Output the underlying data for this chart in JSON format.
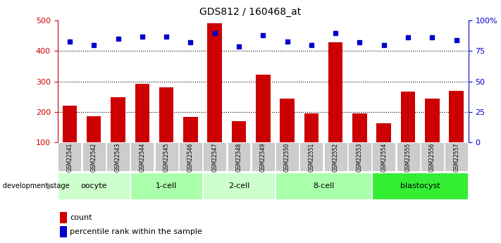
{
  "title": "GDS812 / 160468_at",
  "samples": [
    "GSM22541",
    "GSM22542",
    "GSM22543",
    "GSM22544",
    "GSM22545",
    "GSM22546",
    "GSM22547",
    "GSM22548",
    "GSM22549",
    "GSM22550",
    "GSM22551",
    "GSM22552",
    "GSM22553",
    "GSM22554",
    "GSM22555",
    "GSM22556",
    "GSM22557"
  ],
  "counts": [
    220,
    185,
    248,
    292,
    280,
    183,
    492,
    170,
    322,
    244,
    194,
    430,
    194,
    163,
    267,
    244,
    270
  ],
  "percentiles": [
    83,
    80,
    85,
    87,
    87,
    82,
    90,
    79,
    88,
    83,
    80,
    90,
    82,
    80,
    86,
    86,
    84
  ],
  "groups": [
    {
      "label": "oocyte",
      "start": 0,
      "end": 3,
      "color": "#ccffcc"
    },
    {
      "label": "1-cell",
      "start": 3,
      "end": 6,
      "color": "#aaffaa"
    },
    {
      "label": "2-cell",
      "start": 6,
      "end": 9,
      "color": "#ccffcc"
    },
    {
      "label": "8-cell",
      "start": 9,
      "end": 13,
      "color": "#aaffaa"
    },
    {
      "label": "blastocyst",
      "start": 13,
      "end": 17,
      "color": "#33ee33"
    }
  ],
  "bar_color": "#cc0000",
  "dot_color": "#0000cc",
  "ylim_left": [
    100,
    500
  ],
  "ylim_right": [
    0,
    100
  ],
  "yticks_left": [
    100,
    200,
    300,
    400,
    500
  ],
  "yticks_right": [
    0,
    25,
    50,
    75,
    100
  ],
  "label_fontsize": 8,
  "title_fontsize": 10,
  "bg_color": "#ffffff"
}
